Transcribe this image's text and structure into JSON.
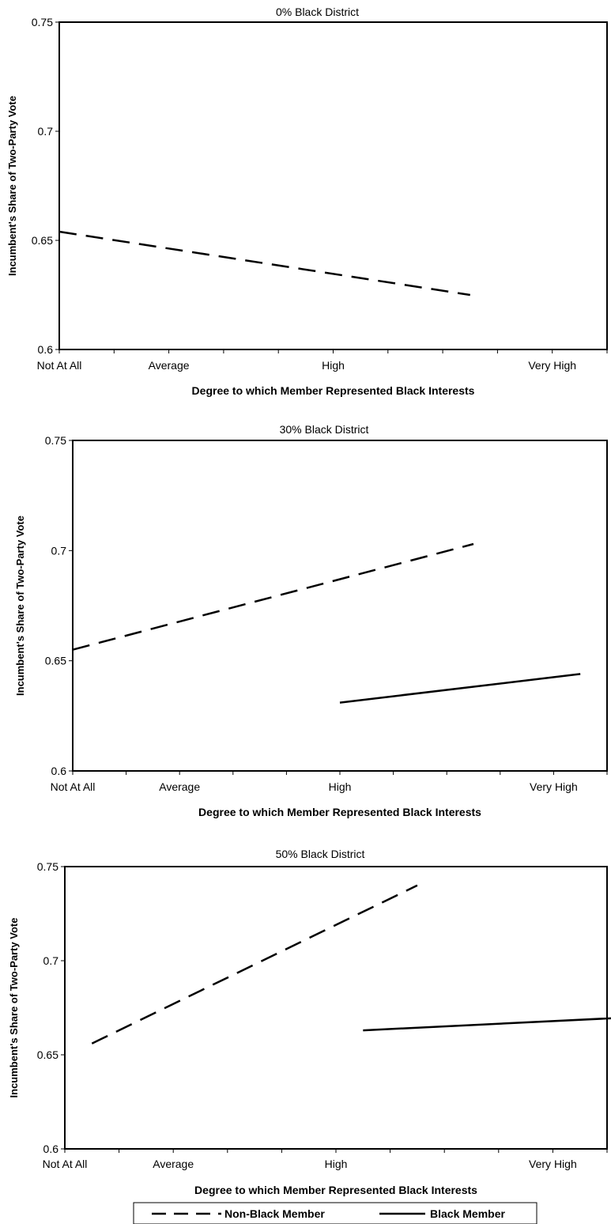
{
  "chart_data": [
    {
      "type": "line",
      "title": "0% Black District",
      "xlabel": "Degree to which Member Represented Black Interests",
      "ylabel": "Incumbent's Share of Two-Party Vote",
      "x_tick_labels": [
        "Not At All",
        "Average",
        "High",
        "Very High"
      ],
      "x_tick_positions": [
        0,
        1,
        2.5,
        4.5
      ],
      "xlim": [
        0,
        5
      ],
      "ylim": [
        0.6,
        0.75
      ],
      "y_ticks": [
        "0.6",
        "0.65",
        "0.7",
        "0.75"
      ],
      "series": [
        {
          "name": "Non-Black Member",
          "style": "dashed",
          "x": [
            0,
            3.75
          ],
          "y": [
            0.654,
            0.625
          ]
        }
      ]
    },
    {
      "type": "line",
      "title": "30% Black District",
      "xlabel": "Degree to which Member Represented Black Interests",
      "ylabel": "Incumbent's Share of Two-Party Vote",
      "x_tick_labels": [
        "Not At All",
        "Average",
        "High",
        "Very High"
      ],
      "x_tick_positions": [
        0,
        1,
        2.5,
        4.5
      ],
      "xlim": [
        0,
        5
      ],
      "ylim": [
        0.6,
        0.75
      ],
      "y_ticks": [
        "0.6",
        "0.65",
        "0.7",
        "0.75"
      ],
      "series": [
        {
          "name": "Non-Black Member",
          "style": "dashed",
          "x": [
            0,
            3.75
          ],
          "y": [
            0.655,
            0.703
          ]
        },
        {
          "name": "Black Member",
          "style": "solid",
          "x": [
            2.5,
            4.75
          ],
          "y": [
            0.631,
            0.644
          ]
        }
      ]
    },
    {
      "type": "line",
      "title": "50% Black District",
      "xlabel": "Degree to which Member Represented Black Interests",
      "ylabel": "Incumbent's Share of Two-Party Vote",
      "x_tick_labels": [
        "Not At All",
        "Average",
        "High",
        "Very High"
      ],
      "x_tick_positions": [
        0,
        1,
        2.5,
        4.5
      ],
      "xlim": [
        0,
        5
      ],
      "ylim": [
        0.6,
        0.75
      ],
      "y_ticks": [
        "0.6",
        "0.65",
        "0.7",
        "0.75"
      ],
      "series": [
        {
          "name": "Non-Black Member",
          "style": "dashed",
          "x": [
            0.25,
            3.25
          ],
          "y": [
            0.656,
            0.74
          ]
        },
        {
          "name": "Black Member",
          "style": "solid",
          "x": [
            2.75,
            5.25
          ],
          "y": [
            0.663,
            0.67
          ]
        }
      ]
    }
  ],
  "legend": {
    "placement": "bottom-center",
    "items": [
      {
        "label": "Non-Black Member",
        "style": "dashed"
      },
      {
        "label": "Black Member",
        "style": "solid"
      }
    ]
  }
}
